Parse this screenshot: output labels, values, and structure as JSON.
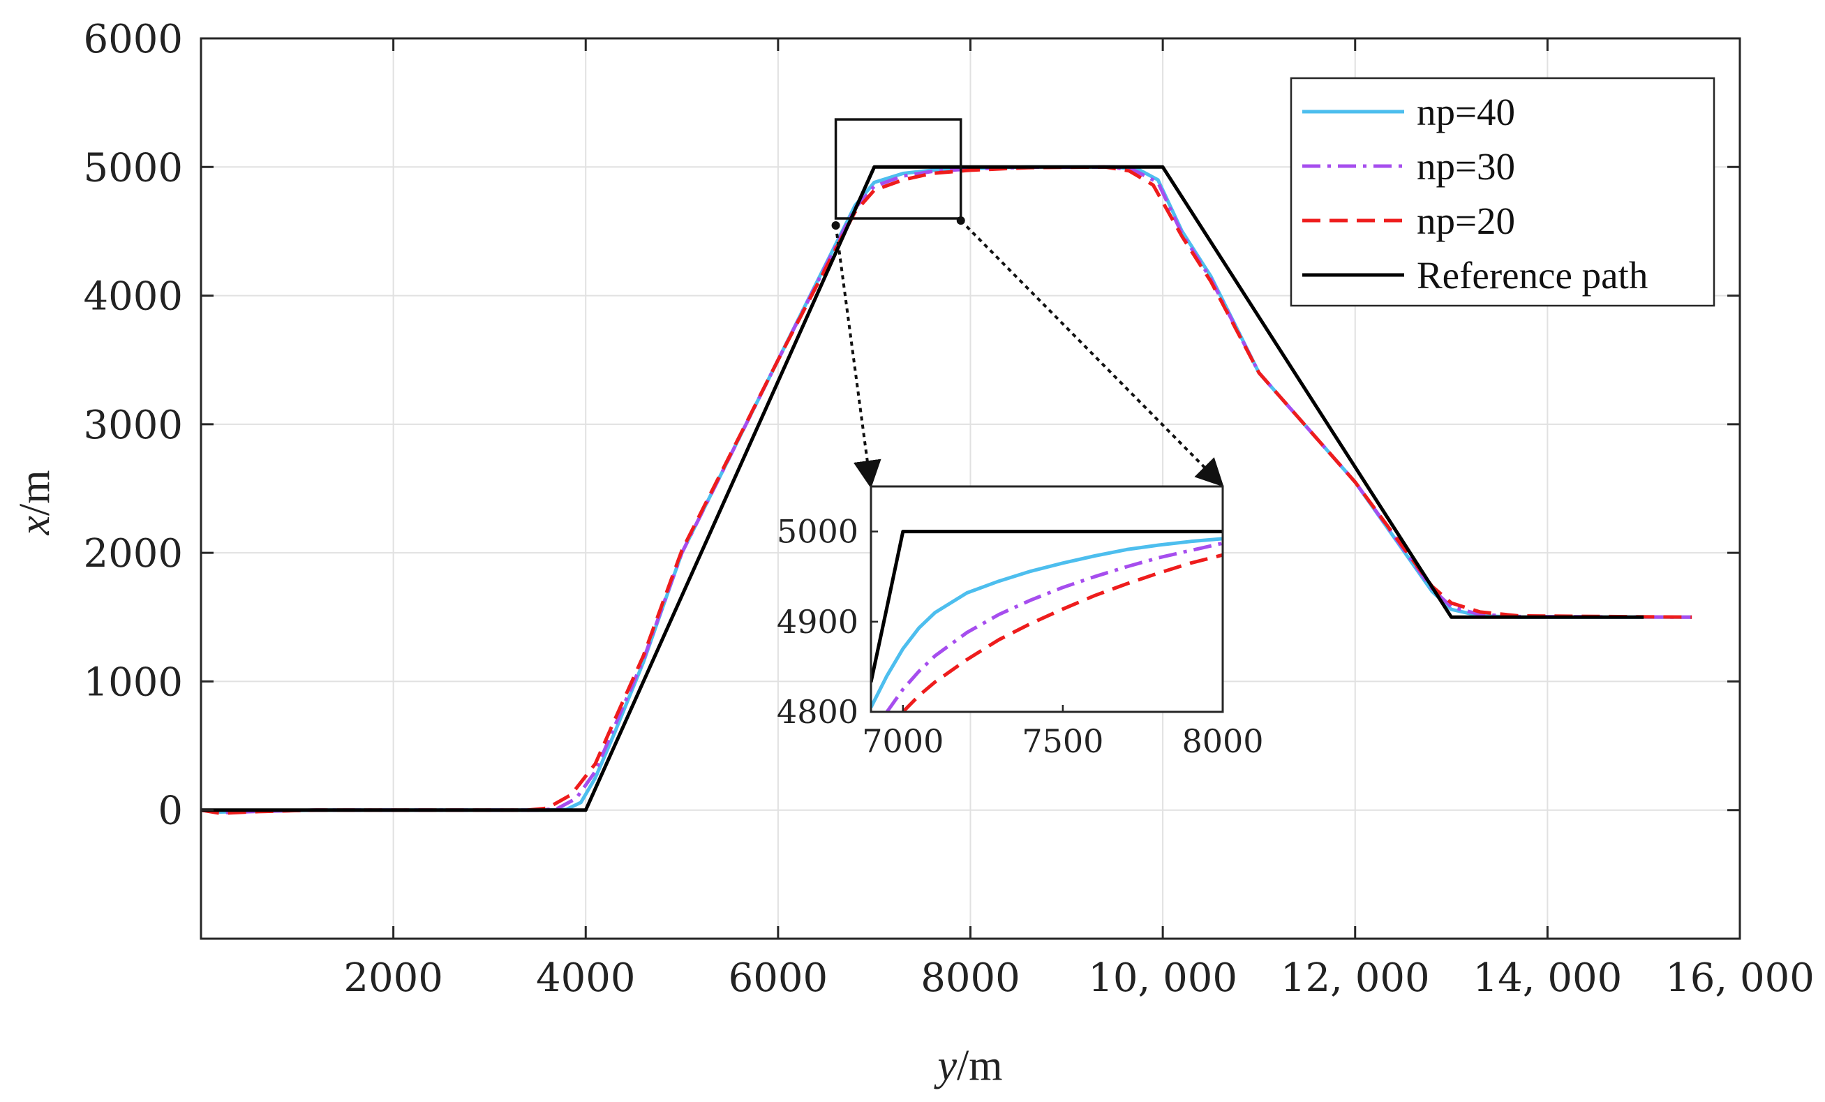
{
  "chart_data": {
    "type": "line",
    "xlabel": {
      "var": "y",
      "unit": "/m"
    },
    "ylabel": {
      "var": "x",
      "unit": "/m"
    },
    "xlim": [
      0,
      16000
    ],
    "ylim": [
      -1000,
      6000
    ],
    "grid": true,
    "legend_position": "top-right",
    "xticks": [
      {
        "value": 2000,
        "label": "2000"
      },
      {
        "value": 4000,
        "label": "4000"
      },
      {
        "value": 6000,
        "label": "6000"
      },
      {
        "value": 8000,
        "label": "8000"
      },
      {
        "value": 10000,
        "label": "10, 000"
      },
      {
        "value": 12000,
        "label": "12, 000"
      },
      {
        "value": 14000,
        "label": "14, 000"
      },
      {
        "value": 16000,
        "label": "16, 000"
      }
    ],
    "yticks": [
      {
        "value": 0,
        "label": "0"
      },
      {
        "value": 1000,
        "label": "1000"
      },
      {
        "value": 2000,
        "label": "2000"
      },
      {
        "value": 3000,
        "label": "3000"
      },
      {
        "value": 4000,
        "label": "4000"
      },
      {
        "value": 5000,
        "label": "5000"
      },
      {
        "value": 6000,
        "label": "6000"
      }
    ],
    "series": [
      {
        "name": "np=40",
        "color": "#4DBEEE",
        "dash": "solid",
        "points": [
          [
            0,
            0
          ],
          [
            200,
            -15
          ],
          [
            600,
            -8
          ],
          [
            1200,
            0
          ],
          [
            3600,
            0
          ],
          [
            3800,
            5
          ],
          [
            3950,
            60
          ],
          [
            4100,
            250
          ],
          [
            4300,
            600
          ],
          [
            4600,
            1150
          ],
          [
            5000,
            2000
          ],
          [
            6000,
            3500
          ],
          [
            6800,
            4700
          ],
          [
            7000,
            4880
          ],
          [
            7300,
            4950
          ],
          [
            7600,
            4975
          ],
          [
            8000,
            4990
          ],
          [
            8600,
            5000
          ],
          [
            9500,
            5000
          ],
          [
            9750,
            4980
          ],
          [
            9950,
            4900
          ],
          [
            10200,
            4500
          ],
          [
            10500,
            4150
          ],
          [
            11000,
            3400
          ],
          [
            12000,
            2550
          ],
          [
            12800,
            1700
          ],
          [
            13000,
            1560
          ],
          [
            13300,
            1510
          ],
          [
            13700,
            1500
          ],
          [
            15500,
            1500
          ]
        ]
      },
      {
        "name": "np=30",
        "color": "#A64DEE",
        "dash": "dashdot",
        "points": [
          [
            0,
            0
          ],
          [
            200,
            -20
          ],
          [
            600,
            -10
          ],
          [
            1200,
            0
          ],
          [
            3500,
            0
          ],
          [
            3700,
            10
          ],
          [
            3900,
            90
          ],
          [
            4100,
            300
          ],
          [
            4300,
            650
          ],
          [
            4600,
            1170
          ],
          [
            5000,
            2000
          ],
          [
            6000,
            3500
          ],
          [
            6800,
            4680
          ],
          [
            7000,
            4850
          ],
          [
            7300,
            4930
          ],
          [
            7600,
            4965
          ],
          [
            8000,
            4985
          ],
          [
            8600,
            4998
          ],
          [
            9450,
            5000
          ],
          [
            9700,
            4975
          ],
          [
            9950,
            4880
          ],
          [
            10200,
            4480
          ],
          [
            10500,
            4130
          ],
          [
            11000,
            3400
          ],
          [
            12000,
            2550
          ],
          [
            12800,
            1720
          ],
          [
            13000,
            1580
          ],
          [
            13300,
            1520
          ],
          [
            13700,
            1505
          ],
          [
            15500,
            1500
          ]
        ]
      },
      {
        "name": "np=20",
        "color": "#EE1C1C",
        "dash": "dashed",
        "points": [
          [
            0,
            0
          ],
          [
            200,
            -25
          ],
          [
            600,
            -12
          ],
          [
            1200,
            0
          ],
          [
            3400,
            0
          ],
          [
            3600,
            15
          ],
          [
            3850,
            120
          ],
          [
            4100,
            360
          ],
          [
            4300,
            700
          ],
          [
            4600,
            1200
          ],
          [
            5000,
            2020
          ],
          [
            6000,
            3500
          ],
          [
            6800,
            4650
          ],
          [
            7000,
            4820
          ],
          [
            7300,
            4900
          ],
          [
            7600,
            4950
          ],
          [
            8000,
            4975
          ],
          [
            8600,
            4995
          ],
          [
            9400,
            5000
          ],
          [
            9650,
            4970
          ],
          [
            9900,
            4860
          ],
          [
            10200,
            4460
          ],
          [
            10500,
            4110
          ],
          [
            11000,
            3400
          ],
          [
            12000,
            2550
          ],
          [
            12800,
            1740
          ],
          [
            13000,
            1610
          ],
          [
            13300,
            1540
          ],
          [
            13700,
            1510
          ],
          [
            15500,
            1500
          ]
        ]
      },
      {
        "name": "Reference path",
        "color": "#000000",
        "dash": "solid",
        "points": [
          [
            0,
            0
          ],
          [
            4000,
            0
          ],
          [
            7000,
            5000
          ],
          [
            10000,
            5000
          ],
          [
            13000,
            1500
          ],
          [
            15000,
            1500
          ]
        ]
      }
    ],
    "zoom_box": {
      "xlim": [
        6600,
        7900
      ],
      "ylim": [
        4600,
        5370
      ]
    },
    "inset": {
      "xlim": [
        6900,
        8000
      ],
      "ylim": [
        4800,
        5050
      ],
      "xticks": [
        {
          "value": 7000,
          "label": "7000"
        },
        {
          "value": 7500,
          "label": "7500"
        },
        {
          "value": 8000,
          "label": "8000"
        }
      ],
      "yticks": [
        {
          "value": 4800,
          "label": "4800"
        },
        {
          "value": 4900,
          "label": "4900"
        },
        {
          "value": 5000,
          "label": "5000"
        }
      ],
      "series": [
        {
          "name": "np=40",
          "points": [
            [
              6900,
              4805
            ],
            [
              6950,
              4840
            ],
            [
              7000,
              4870
            ],
            [
              7050,
              4893
            ],
            [
              7100,
              4910
            ],
            [
              7200,
              4932
            ],
            [
              7300,
              4945
            ],
            [
              7400,
              4956
            ],
            [
              7500,
              4965
            ],
            [
              7600,
              4973
            ],
            [
              7700,
              4980
            ],
            [
              7800,
              4985
            ],
            [
              7900,
              4989
            ],
            [
              8000,
              4992
            ]
          ]
        },
        {
          "name": "np=30",
          "points": [
            [
              6950,
              4800
            ],
            [
              7000,
              4825
            ],
            [
              7050,
              4845
            ],
            [
              7100,
              4862
            ],
            [
              7200,
              4888
            ],
            [
              7300,
              4908
            ],
            [
              7400,
              4924
            ],
            [
              7500,
              4938
            ],
            [
              7600,
              4950
            ],
            [
              7700,
              4961
            ],
            [
              7800,
              4971
            ],
            [
              7900,
              4979
            ],
            [
              8000,
              4987
            ]
          ]
        },
        {
          "name": "np=20",
          "points": [
            [
              7000,
              4800
            ],
            [
              7050,
              4818
            ],
            [
              7100,
              4833
            ],
            [
              7200,
              4858
            ],
            [
              7300,
              4880
            ],
            [
              7400,
              4898
            ],
            [
              7500,
              4914
            ],
            [
              7600,
              4929
            ],
            [
              7700,
              4942
            ],
            [
              7800,
              4954
            ],
            [
              7900,
              4965
            ],
            [
              8000,
              4974
            ]
          ]
        },
        {
          "name": "Reference path",
          "points": [
            [
              6900,
              4833
            ],
            [
              6950,
              4916
            ],
            [
              7000,
              5000
            ],
            [
              8000,
              5000
            ]
          ]
        }
      ]
    }
  }
}
